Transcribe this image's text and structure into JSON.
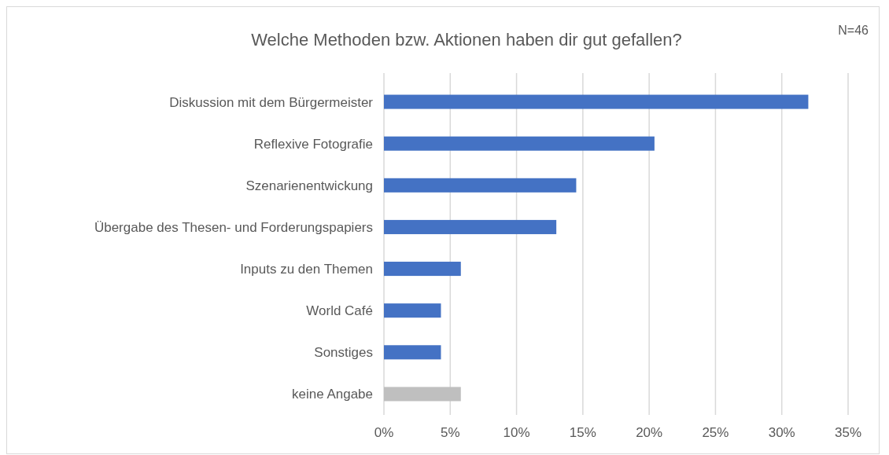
{
  "chart_data": {
    "type": "bar",
    "orientation": "horizontal",
    "title": "Welche Methoden bzw. Aktionen haben dir gut gefallen?",
    "annotations": [
      "N=46"
    ],
    "categories": [
      "Diskussion mit dem Bürgermeister",
      "Reflexive Fotografie",
      "Szenarienentwickung",
      "Übergabe des Thesen- und Forderungspapiers",
      "Inputs zu den Themen",
      "World Café",
      "Sonstiges",
      "keine Angabe"
    ],
    "values": [
      32,
      20.4,
      14.5,
      13,
      5.8,
      4.3,
      4.3,
      5.8
    ],
    "colors": [
      "#4472c4",
      "#4472c4",
      "#4472c4",
      "#4472c4",
      "#4472c4",
      "#4472c4",
      "#4472c4",
      "#bfbfbf"
    ],
    "xlim": [
      0,
      35
    ],
    "xticks": [
      {
        "value": 0,
        "label": "0%"
      },
      {
        "value": 5,
        "label": "5%"
      },
      {
        "value": 10,
        "label": "10%"
      },
      {
        "value": 15,
        "label": "15%"
      },
      {
        "value": 20,
        "label": "20%"
      },
      {
        "value": 25,
        "label": "25%"
      },
      {
        "value": 30,
        "label": "30%"
      },
      {
        "value": 35,
        "label": "35%"
      }
    ],
    "grid": "x"
  }
}
